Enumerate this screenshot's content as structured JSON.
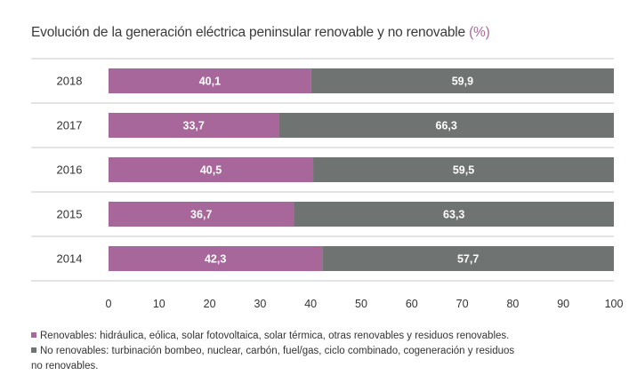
{
  "header": {
    "title": "Evolución de la generación eléctrica peninsular renovable y no renovable",
    "unit": "(%)"
  },
  "colors": {
    "renovable": "#a8679a",
    "no_renovable": "#6f7472",
    "grid": "#c8c8c8",
    "label_text": "#ffffff"
  },
  "chart_data": {
    "type": "bar",
    "orientation": "horizontal",
    "stacked": true,
    "title": "Evolución de la generación eléctrica peninsular renovable y no renovable (%)",
    "categories": [
      "2018",
      "2017",
      "2016",
      "2015",
      "2014"
    ],
    "series": [
      {
        "name": "Renovables",
        "values": [
          40.1,
          33.7,
          40.5,
          36.7,
          42.3
        ],
        "labels": [
          "40,1",
          "33,7",
          "40,5",
          "36,7",
          "42,3"
        ]
      },
      {
        "name": "No renovables",
        "values": [
          59.9,
          66.3,
          59.5,
          63.3,
          57.7
        ],
        "labels": [
          "59,9",
          "66,3",
          "59,5",
          "63,3",
          "57,7"
        ]
      }
    ],
    "xlim": [
      0,
      100
    ],
    "xticks": [
      "0",
      "10",
      "20",
      "30",
      "40",
      "50",
      "60",
      "70",
      "80",
      "90",
      "100"
    ],
    "xlabel": "",
    "ylabel": "",
    "legend_position": "bottom"
  },
  "legend": {
    "renovable_text": "Renovables: hidráulica, eólica, solar fotovoltaica, solar térmica, otras renovables y residuos renovables.",
    "no_renovable_text_line1": "No renovables: turbinación bombeo, nuclear, carbón, fuel/gas, ciclo combinado, cogeneración y residuos",
    "no_renovable_text_line2": "no renovables."
  }
}
